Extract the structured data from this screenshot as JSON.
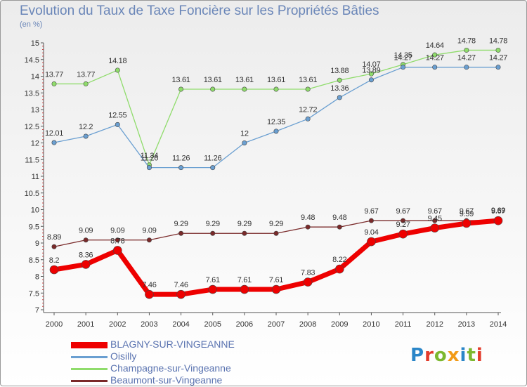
{
  "title": "Evolution du Taux de Taxe Foncière sur les Propriétés Bâties",
  "subtitle": "(en %)",
  "logo": {
    "text": "Proxiti",
    "colors": [
      "#2a86c8",
      "#e23b2b",
      "#7cb82f",
      "#f29a16",
      "#2a86c8",
      "#7cb82f",
      "#e23b2b"
    ]
  },
  "chart_data": {
    "type": "line",
    "x": [
      "2000",
      "2001",
      "2002",
      "2003",
      "2004",
      "2005",
      "2006",
      "2007",
      "2008",
      "2009",
      "2010",
      "2011",
      "2012",
      "2013",
      "2014"
    ],
    "ylim": [
      7,
      15
    ],
    "yticks": [
      "7",
      "7.5",
      "8",
      "8.5",
      "9",
      "9.5",
      "10",
      "10.5",
      "11",
      "11.5",
      "12",
      "12.5",
      "13",
      "13.5",
      "14",
      "14.5",
      "15"
    ],
    "grid": false,
    "legend_position": "bottom-left",
    "series": [
      {
        "name": "BLAGNY-SUR-VINGEANNE",
        "color": "#ee0000",
        "width": 7,
        "values": [
          8.2,
          8.36,
          8.78,
          7.46,
          7.46,
          7.61,
          7.61,
          7.61,
          7.83,
          8.22,
          9.04,
          9.27,
          9.45,
          9.59,
          9.67
        ],
        "labels": [
          "8.2",
          "8.36",
          "8.78",
          "7.46",
          "7.46",
          "7.61",
          "7.61",
          "7.61",
          "7.83",
          "8.22",
          "9.04",
          "9.27",
          "9.45",
          "9.59",
          "9.67"
        ]
      },
      {
        "name": "Oisilly",
        "color": "#6a9fd1",
        "width": 1.3,
        "values": [
          12.01,
          12.2,
          12.55,
          11.26,
          11.26,
          11.26,
          12,
          12.35,
          12.72,
          13.36,
          13.89,
          14.27,
          14.27,
          14.27,
          14.27
        ],
        "labels": [
          "12.01",
          "12.2",
          "12.55",
          "11.26",
          "11.26",
          "11.26",
          "12",
          "12.35",
          "12.72",
          "13.36",
          "13.89",
          "14.27",
          "14.27",
          "14.27",
          "14.27"
        ]
      },
      {
        "name": "Champagne-sur-Vingeanne",
        "color": "#8fdc6b",
        "width": 1.3,
        "values": [
          13.77,
          13.77,
          14.18,
          11.34,
          13.61,
          13.61,
          13.61,
          13.61,
          13.61,
          13.88,
          14.07,
          14.35,
          14.64,
          14.78,
          14.78
        ],
        "labels": [
          "13.77",
          "13.77",
          "14.18",
          "11.34",
          "13.61",
          "13.61",
          "13.61",
          "13.61",
          "13.61",
          "13.88",
          "14.07",
          "14.35",
          "14.64",
          "14.78",
          "14.78"
        ]
      },
      {
        "name": "Beaumont-sur-Vingeanne",
        "color": "#7a2a2a",
        "width": 1.3,
        "values": [
          8.89,
          9.09,
          9.09,
          9.09,
          9.29,
          9.29,
          9.29,
          9.29,
          9.48,
          9.48,
          9.67,
          9.67,
          9.67,
          9.67,
          9.69
        ],
        "labels": [
          "8.89",
          "9.09",
          "9.09",
          "9.09",
          "9.29",
          "9.29",
          "9.29",
          "9.29",
          "9.48",
          "9.48",
          "9.67",
          "9.67",
          "9.67",
          "9.67",
          "9.69"
        ]
      }
    ]
  }
}
